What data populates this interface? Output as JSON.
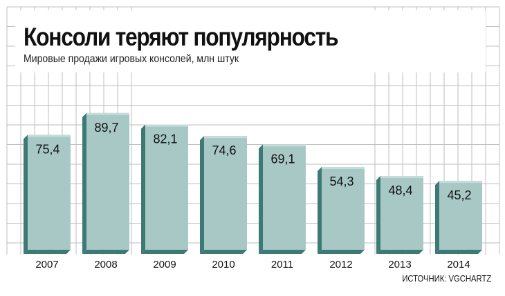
{
  "header": {
    "title": "Консоли теряют популярность",
    "subtitle": "Мировые продажи игровых консолей, млн штук"
  },
  "footer": {
    "source": "ИСТОЧНИК: VGCHARTZ"
  },
  "colors": {
    "bar_face": "#a8c8c6",
    "bar_top": "#c4dcda",
    "bar_side": "#3d7a75",
    "grid": "#bdbdbd",
    "text": "#111111"
  },
  "chart_data": {
    "type": "bar",
    "title": "Консоли теряют популярность",
    "subtitle": "Мировые продажи игровых консолей, млн штук",
    "categories": [
      "2007",
      "2008",
      "2009",
      "2010",
      "2011",
      "2012",
      "2013",
      "2014"
    ],
    "values": [
      75.4,
      89.7,
      82.1,
      74.6,
      69.1,
      54.3,
      48.4,
      45.2
    ],
    "value_labels": [
      "75,4",
      "89,7",
      "82,1",
      "74,6",
      "69,1",
      "54,3",
      "48,4",
      "45,2"
    ],
    "xlabel": "",
    "ylabel": "",
    "ylim": [
      0,
      100
    ],
    "grid": true,
    "legend": "none"
  }
}
